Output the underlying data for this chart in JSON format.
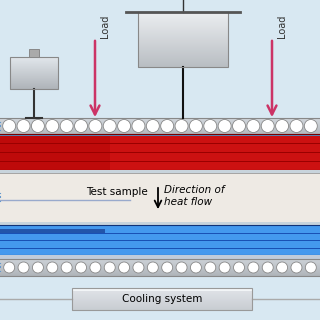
{
  "bg_color": "#d8e8f2",
  "plate_color": "#b8c4cc",
  "plate_highlight": "#d8dfe4",
  "plate_border": "#888888",
  "hot_color": "#cc1111",
  "hot_line_color": "#990000",
  "cold_color": "#4499ee",
  "cold_dark": "#2255aa",
  "cold_line_color": "#1144aa",
  "sample_color": "#eeeae4",
  "sample_border": "#999999",
  "arrow_color": "#cc3366",
  "load_label": "Load",
  "test_sample_label": "Test sample",
  "direction_label": "Direction of\nheat flow",
  "cooling_label": "Cooling system",
  "circle_color": "#ffffff",
  "circle_edge": "#888888",
  "side_line_color": "#6699cc",
  "thin_line_color": "#aabbcc"
}
